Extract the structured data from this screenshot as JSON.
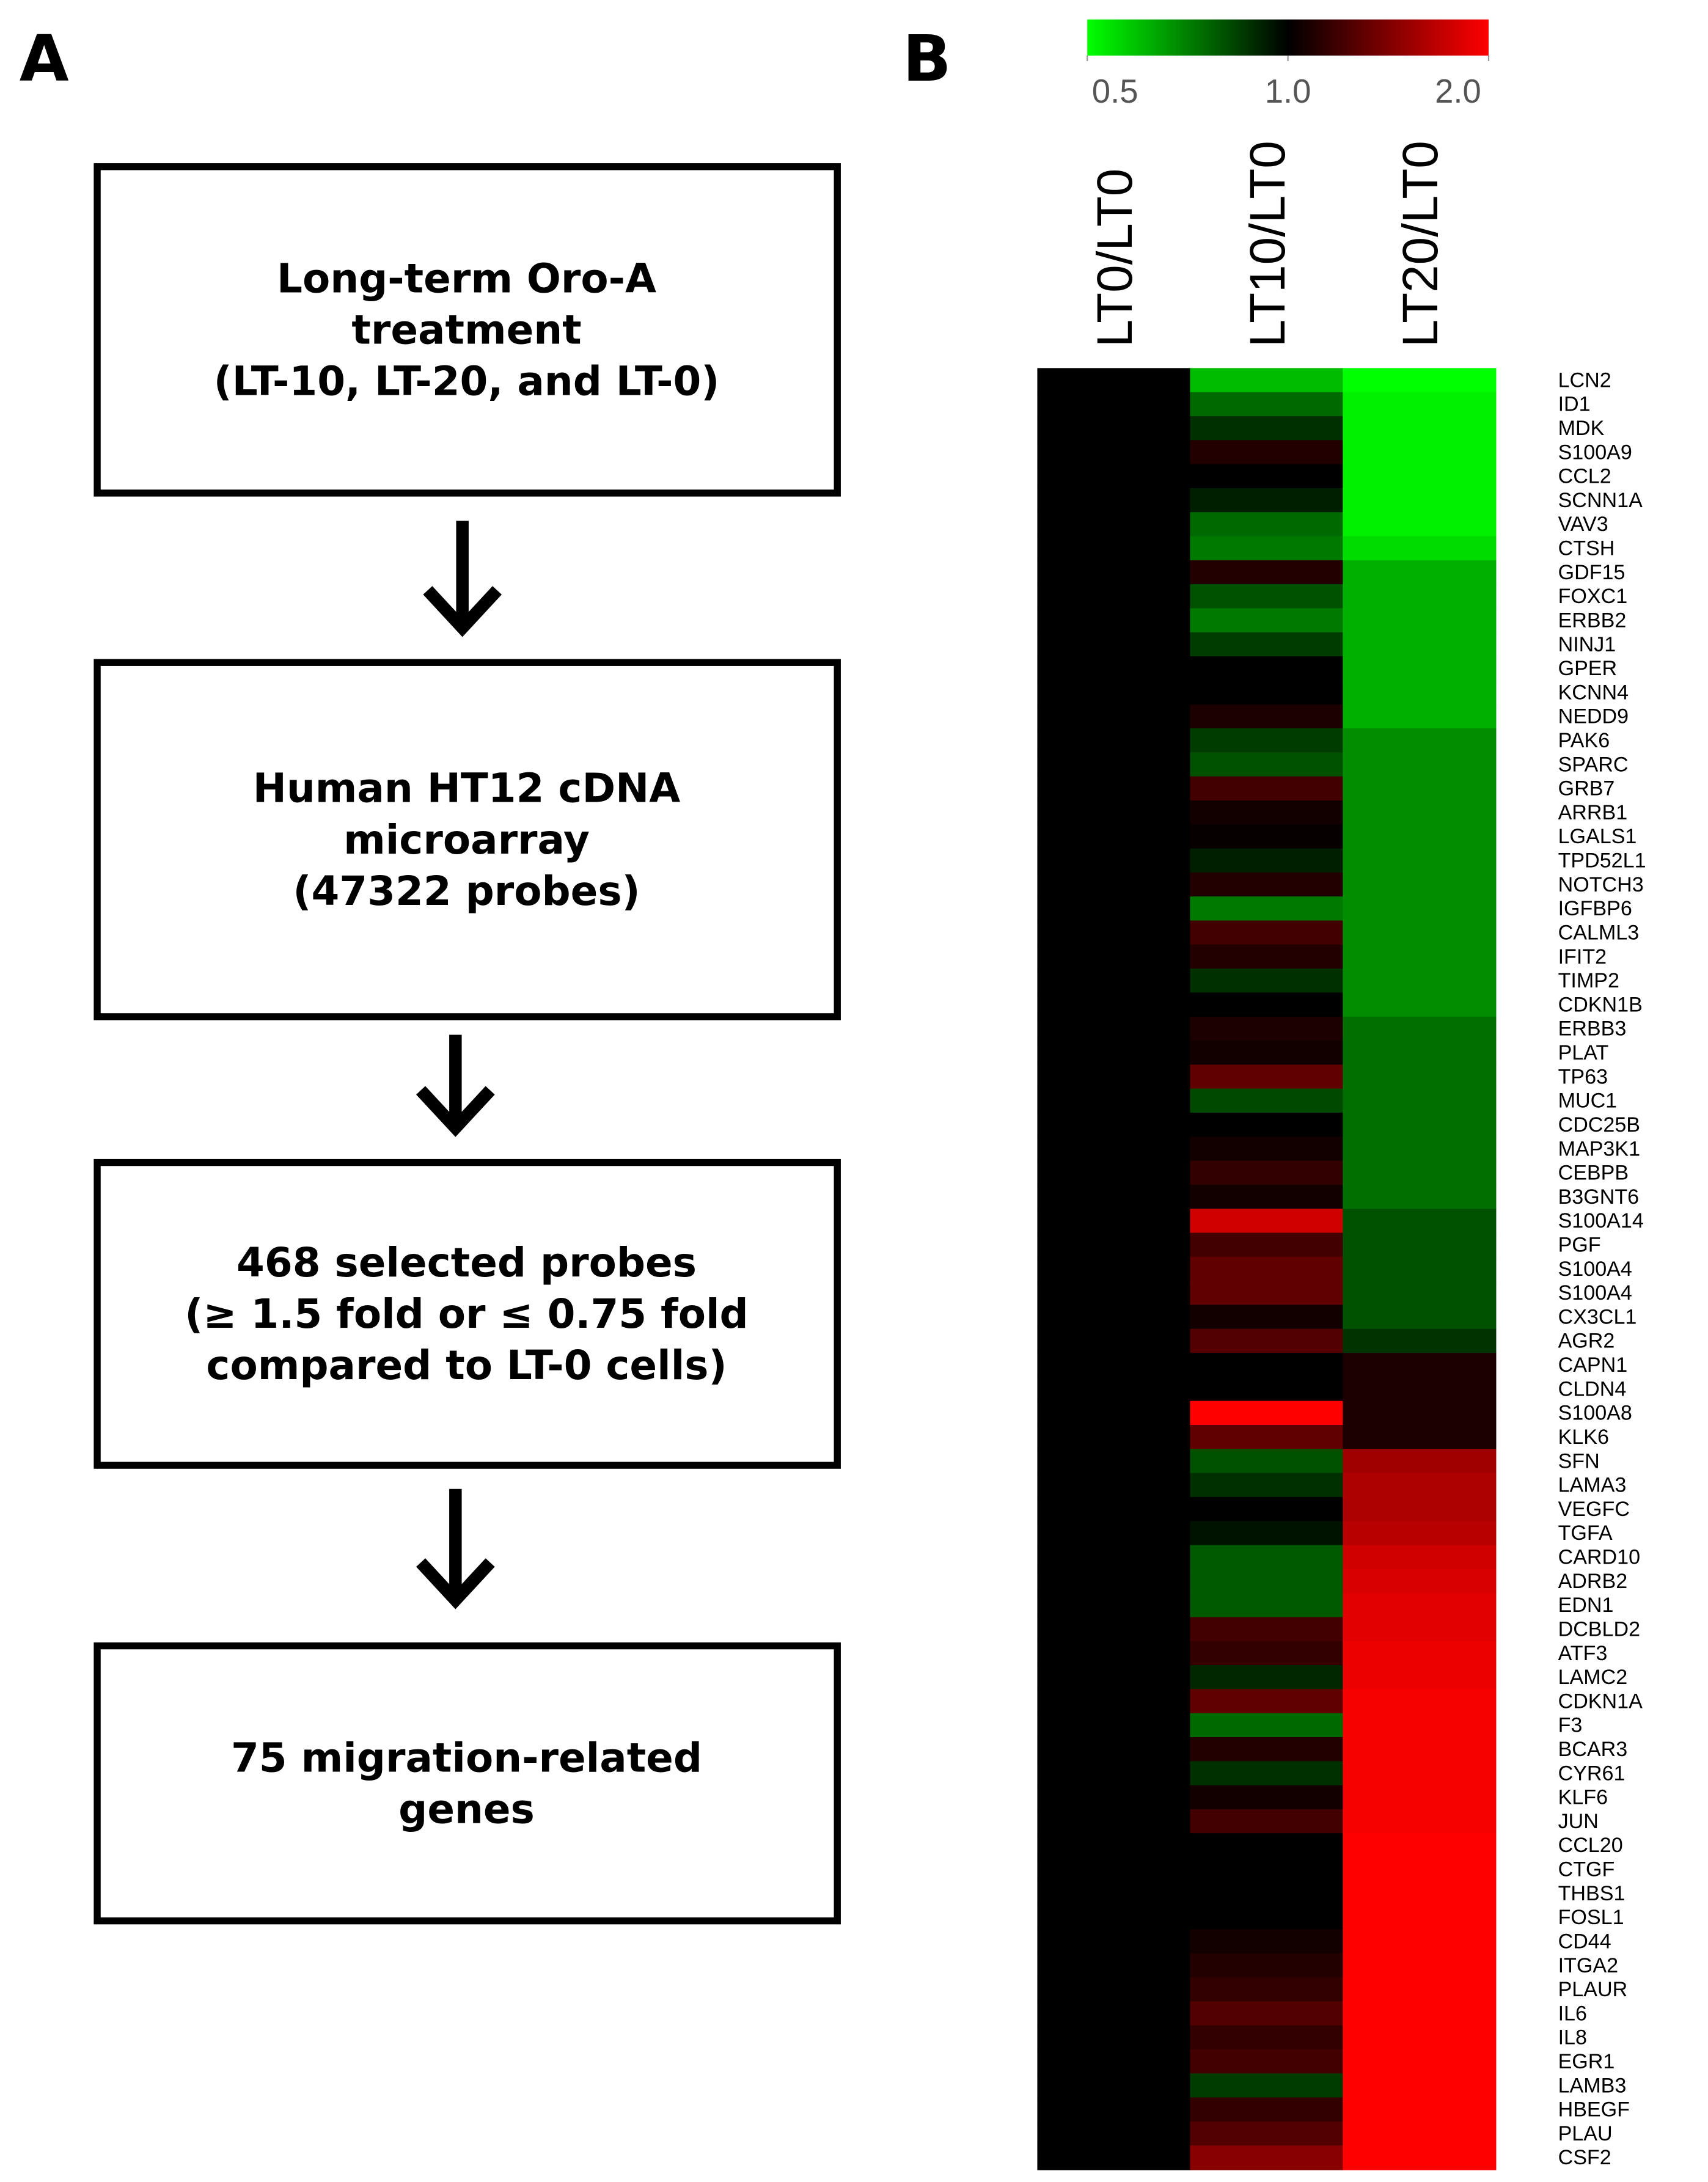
{
  "panel_labels": [
    "A",
    "B"
  ],
  "panel_a": {
    "boxes": [
      {
        "lines": [
          "Long-term Oro-A",
          "treatment",
          "(LT-10, LT-20, and LT-0)"
        ]
      },
      {
        "lines": [
          "Human HT12 cDNA",
          "microarray",
          "(47322 probes)"
        ]
      },
      {
        "lines": [
          "468 selected probes",
          "(≥ 1.5 fold or ≤ 0.75 fold",
          "compared to LT-0 cells)"
        ]
      },
      {
        "lines": [
          "75 migration-related",
          "genes"
        ]
      }
    ]
  },
  "chart_data": {
    "type": "heatmap",
    "categories": [
      "LCN2",
      "ID1",
      "MDK",
      "S100A9",
      "CCL2",
      "SCNN1A",
      "VAV3",
      "CTSH",
      "GDF15",
      "FOXC1",
      "ERBB2",
      "NINJ1",
      "GPER",
      "KCNN4",
      "NEDD9",
      "PAK6",
      "SPARC",
      "GRB7",
      "ARRB1",
      "LGALS1",
      "TPD52L1",
      "NOTCH3",
      "IGFBP6",
      "CALML3",
      "IFIT2",
      "TIMP2",
      "CDKN1B",
      "ERBB3",
      "PLAT",
      "TP63",
      "MUC1",
      "CDC25B",
      "MAP3K1",
      "CEBPB",
      "B3GNT6",
      "S100A14",
      "PGF",
      "S100A4",
      "S100A4",
      "CX3CL1",
      "AGR2",
      "CAPN1",
      "CLDN4",
      "S100A8",
      "KLK6",
      "SFN",
      "LAMA3",
      "VEGFC",
      "TGFA",
      "CARD10",
      "ADRB2",
      "EDN1",
      "DCBLD2",
      "ATF3",
      "LAMC2",
      "CDKN1A",
      "F3",
      "BCAR3",
      "CYR61",
      "KLF6",
      "JUN",
      "CCL20",
      "CTGF",
      "THBS1",
      "FOSL1",
      "CD44",
      "ITGA2",
      "PLAUR",
      "IL6",
      "IL8",
      "EGR1",
      "LAMB3",
      "HBEGF",
      "PLAU",
      "CSF2"
    ],
    "series": [
      {
        "name": "LT0/LT0",
        "values": [
          1,
          1,
          1,
          1,
          1,
          1,
          1,
          1,
          1,
          1,
          1,
          1,
          1,
          1,
          1,
          1,
          1,
          1,
          1,
          1,
          1,
          1,
          1,
          1,
          1,
          1,
          1,
          1,
          1,
          1,
          1,
          1,
          1,
          1,
          1,
          1,
          1,
          1,
          1,
          1,
          1,
          1,
          1,
          1,
          1,
          1,
          1,
          1,
          1,
          1,
          1,
          1,
          1,
          1,
          1,
          1,
          1,
          1,
          1,
          1,
          1,
          1,
          1,
          1,
          1,
          1,
          1,
          1,
          1,
          1,
          1,
          1,
          1,
          1,
          1
        ]
      },
      {
        "name": "LT10/LT0",
        "values": [
          0.6,
          0.75,
          0.88,
          1.1,
          1,
          0.92,
          0.75,
          0.72,
          1.1,
          0.8,
          0.72,
          0.85,
          1,
          1,
          1.08,
          0.85,
          0.8,
          1.2,
          1.05,
          1.02,
          0.92,
          1.1,
          0.72,
          1.2,
          1.1,
          0.88,
          1,
          1.08,
          1.05,
          1.3,
          0.82,
          1,
          1.05,
          1.15,
          1.05,
          1.75,
          1.2,
          1.3,
          1.3,
          1.05,
          1.25,
          1,
          1,
          2,
          1.3,
          0.8,
          0.88,
          1,
          0.95,
          0.78,
          0.78,
          0.78,
          1.2,
          1.15,
          0.9,
          1.3,
          0.75,
          1.1,
          0.88,
          1.05,
          1.2,
          1,
          1,
          1,
          1,
          1.05,
          1.1,
          1.15,
          1.25,
          1.15,
          1.2,
          0.85,
          1.15,
          1.25,
          1.45
        ]
      },
      {
        "name": "LT20/LT0",
        "values": [
          0.5,
          0.52,
          0.52,
          0.52,
          0.52,
          0.52,
          0.52,
          0.55,
          0.62,
          0.62,
          0.62,
          0.62,
          0.62,
          0.62,
          0.62,
          0.68,
          0.68,
          0.68,
          0.68,
          0.68,
          0.68,
          0.68,
          0.68,
          0.68,
          0.68,
          0.68,
          0.68,
          0.74,
          0.74,
          0.74,
          0.74,
          0.74,
          0.74,
          0.74,
          0.74,
          0.8,
          0.8,
          0.8,
          0.8,
          0.8,
          0.87,
          1.08,
          1.08,
          1.08,
          1.08,
          1.55,
          1.6,
          1.6,
          1.65,
          1.75,
          1.8,
          1.85,
          1.85,
          1.9,
          1.9,
          1.95,
          1.95,
          1.95,
          1.95,
          1.95,
          1.95,
          2,
          2,
          2,
          2,
          2,
          2,
          2,
          2,
          2,
          2,
          2,
          2,
          2,
          2
        ]
      }
    ],
    "clim": [
      0.5,
      2
    ],
    "cticks": [
      0.5,
      {
        "value": 1,
        "label": "1.0"
      },
      {
        "value": 2,
        "label": "2.0"
      }
    ],
    "colors": [
      "#00ff00",
      "#000000",
      "#ff0000"
    ],
    "log_scale": true
  }
}
